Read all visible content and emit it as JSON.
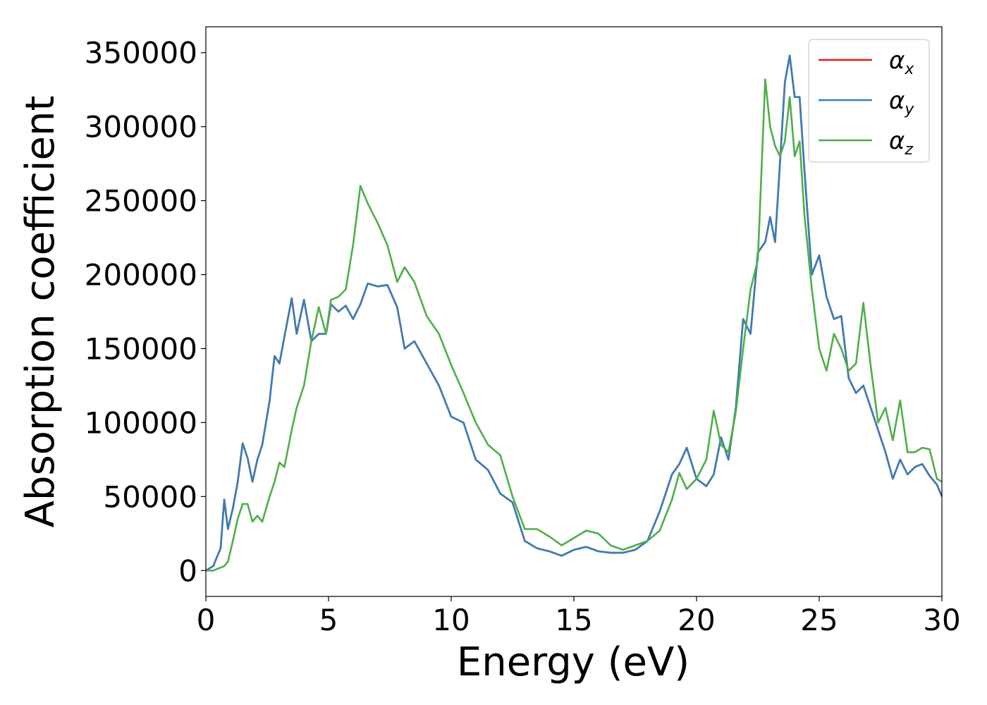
{
  "chart_data": {
    "type": "line",
    "xlabel": "Energy (eV)",
    "ylabel": "Absorption coefficient",
    "xlim": [
      0,
      30
    ],
    "ylim": [
      -17500,
      367500
    ],
    "xticks": [
      0,
      5,
      10,
      15,
      20,
      25,
      30
    ],
    "yticks": [
      0,
      50000,
      100000,
      150000,
      200000,
      250000,
      300000,
      350000
    ],
    "grid": false,
    "legend_position": "top-right",
    "x": [
      0,
      0.3,
      0.6,
      0.75,
      0.9,
      1.1,
      1.3,
      1.5,
      1.7,
      1.9,
      2.1,
      2.3,
      2.6,
      2.8,
      3.0,
      3.2,
      3.5,
      3.7,
      4.0,
      4.3,
      4.6,
      4.9,
      5.1,
      5.4,
      5.7,
      6.0,
      6.3,
      6.6,
      7.0,
      7.4,
      7.8,
      8.1,
      8.5,
      9.0,
      9.5,
      10.0,
      10.5,
      11.0,
      11.5,
      12.0,
      12.5,
      13.0,
      13.5,
      14.0,
      14.5,
      15.0,
      15.5,
      16.0,
      16.5,
      17.0,
      17.5,
      18.0,
      18.5,
      19.0,
      19.3,
      19.6,
      20.0,
      20.4,
      20.7,
      21.0,
      21.3,
      21.6,
      21.9,
      22.2,
      22.5,
      22.8,
      23.0,
      23.2,
      23.4,
      23.6,
      23.8,
      24.0,
      24.2,
      24.4,
      24.7,
      25.0,
      25.3,
      25.6,
      25.9,
      26.2,
      26.5,
      26.8,
      27.1,
      27.4,
      27.7,
      28.0,
      28.3,
      28.6,
      28.9,
      29.2,
      29.5,
      29.8,
      30.0
    ],
    "series": [
      {
        "name": "αx",
        "color": "#e41a1c",
        "values": [
          0,
          3000,
          15000,
          48000,
          28000,
          42000,
          60000,
          86000,
          76000,
          60000,
          75000,
          85000,
          115000,
          145000,
          140000,
          158000,
          184000,
          160000,
          183000,
          155000,
          160000,
          160000,
          180000,
          175000,
          179000,
          170000,
          180000,
          194000,
          192000,
          193000,
          178000,
          150000,
          155000,
          140000,
          125000,
          104000,
          100000,
          75000,
          68000,
          52000,
          46000,
          20000,
          15000,
          13000,
          10000,
          14000,
          16000,
          13000,
          12000,
          12000,
          14000,
          20000,
          40000,
          65000,
          72000,
          83000,
          62000,
          57000,
          65000,
          90000,
          75000,
          110000,
          170000,
          160000,
          215000,
          222000,
          239000,
          222000,
          275000,
          330000,
          348000,
          320000,
          320000,
          270000,
          200000,
          213000,
          185000,
          170000,
          172000,
          130000,
          120000,
          125000,
          110000,
          95000,
          80000,
          62000,
          75000,
          65000,
          70000,
          72000,
          64000,
          58000,
          50000
        ]
      },
      {
        "name": "αy",
        "color": "#377eb8",
        "values": [
          0,
          3000,
          15000,
          48000,
          28000,
          42000,
          60000,
          86000,
          76000,
          60000,
          75000,
          85000,
          115000,
          145000,
          140000,
          158000,
          184000,
          160000,
          183000,
          155000,
          160000,
          160000,
          180000,
          175000,
          179000,
          170000,
          180000,
          194000,
          192000,
          193000,
          178000,
          150000,
          155000,
          140000,
          125000,
          104000,
          100000,
          75000,
          68000,
          52000,
          46000,
          20000,
          15000,
          13000,
          10000,
          14000,
          16000,
          13000,
          12000,
          12000,
          14000,
          20000,
          40000,
          65000,
          72000,
          83000,
          62000,
          57000,
          65000,
          90000,
          75000,
          110000,
          170000,
          160000,
          215000,
          222000,
          239000,
          222000,
          275000,
          330000,
          348000,
          320000,
          320000,
          270000,
          200000,
          213000,
          185000,
          170000,
          172000,
          130000,
          120000,
          125000,
          110000,
          95000,
          80000,
          62000,
          75000,
          65000,
          70000,
          72000,
          64000,
          58000,
          50000
        ]
      },
      {
        "name": "αz",
        "color": "#4daf4a",
        "values": [
          0,
          0,
          2000,
          3000,
          6000,
          20000,
          35000,
          45000,
          45000,
          33000,
          37000,
          33000,
          50000,
          60000,
          73000,
          70000,
          95000,
          110000,
          125000,
          155000,
          178000,
          160000,
          183000,
          185000,
          190000,
          220000,
          260000,
          248000,
          235000,
          220000,
          195000,
          205000,
          195000,
          172000,
          160000,
          139000,
          120000,
          100000,
          85000,
          78000,
          50000,
          28000,
          28000,
          23000,
          17000,
          22000,
          27000,
          25000,
          17000,
          14000,
          17000,
          20000,
          27000,
          48000,
          66000,
          55000,
          62000,
          75000,
          108000,
          85000,
          80000,
          107000,
          150000,
          190000,
          210000,
          332000,
          300000,
          287000,
          280000,
          290000,
          320000,
          280000,
          290000,
          240000,
          190000,
          150000,
          135000,
          160000,
          150000,
          135000,
          140000,
          181000,
          138000,
          100000,
          110000,
          88000,
          115000,
          80000,
          80000,
          83000,
          82000,
          62000,
          60000
        ]
      }
    ]
  }
}
